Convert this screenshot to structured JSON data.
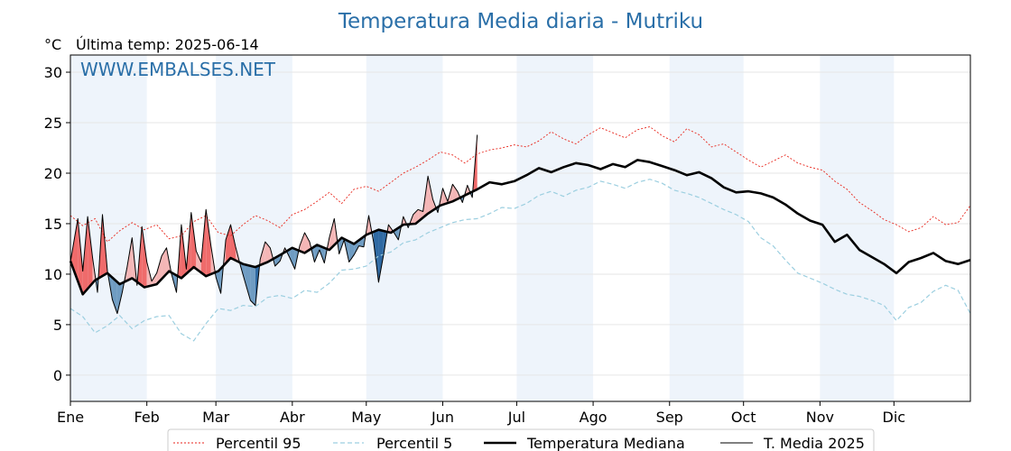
{
  "title": "Temperatura Media diaria - Mutriku",
  "unit_label": "°C",
  "last_temp_label": "Última temp: 2025-06-14",
  "watermark": "WWW.EMBALSES.NET",
  "colors": {
    "title": "#2a6fa8",
    "p95": "#e8261c",
    "p5": "#9ccfe0",
    "median": "#000000",
    "current": "#000000",
    "above_fill": "#f4b6b6",
    "above_fill_strong": "#ef6b6b",
    "below_fill": "#6f9cc2",
    "below_fill_strong": "#2f6aa3",
    "month_band": "#eef4fb"
  },
  "chart_data": {
    "type": "line",
    "title": "Temperatura Media diaria - Mutriku",
    "ylabel": "°C",
    "ylim": [
      -2.6,
      31.7
    ],
    "yticks": [
      0,
      5,
      10,
      15,
      20,
      25,
      30
    ],
    "xlim_day": [
      0,
      365
    ],
    "months": [
      {
        "label": "Ene",
        "day": 0
      },
      {
        "label": "Feb",
        "day": 31
      },
      {
        "label": "Mar",
        "day": 59
      },
      {
        "label": "Abr",
        "day": 90
      },
      {
        "label": "May",
        "day": 120
      },
      {
        "label": "Jun",
        "day": 151
      },
      {
        "label": "Jul",
        "day": 181
      },
      {
        "label": "Ago",
        "day": 212
      },
      {
        "label": "Sep",
        "day": 243
      },
      {
        "label": "Oct",
        "day": 273
      },
      {
        "label": "Nov",
        "day": 304
      },
      {
        "label": "Dic",
        "day": 334
      }
    ],
    "shaded_months": [
      "Ene",
      "Mar",
      "May",
      "Jul",
      "Sep",
      "Nov"
    ],
    "grid": true,
    "legend_position": "bottom-center",
    "series": [
      {
        "name": "Percentil 95",
        "style": "dotted",
        "x": [
          0,
          5,
          10,
          15,
          20,
          25,
          30,
          35,
          40,
          45,
          50,
          55,
          60,
          65,
          70,
          75,
          80,
          85,
          90,
          95,
          100,
          105,
          110,
          115,
          120,
          125,
          130,
          135,
          140,
          145,
          150,
          155,
          160,
          165,
          170,
          175,
          180,
          185,
          190,
          195,
          200,
          205,
          210,
          215,
          220,
          225,
          230,
          235,
          240,
          245,
          250,
          255,
          260,
          265,
          270,
          275,
          280,
          285,
          290,
          295,
          300,
          305,
          310,
          315,
          320,
          325,
          330,
          335,
          340,
          345,
          350,
          355,
          360,
          365
        ],
        "values": [
          15.8,
          14.8,
          15.5,
          13.2,
          14.3,
          15.1,
          14.4,
          14.9,
          13.5,
          13.8,
          15.2,
          15.8,
          14.1,
          13.8,
          14.9,
          15.8,
          15.3,
          14.6,
          15.9,
          16.4,
          17.2,
          18.1,
          17.0,
          18.4,
          18.7,
          18.2,
          19.1,
          20.0,
          20.6,
          21.3,
          22.1,
          21.8,
          21.0,
          21.9,
          22.3,
          22.5,
          22.8,
          22.6,
          23.2,
          24.1,
          23.4,
          22.9,
          23.8,
          24.5,
          24.0,
          23.5,
          24.3,
          24.6,
          23.7,
          23.1,
          24.4,
          23.8,
          22.6,
          22.9,
          22.1,
          21.3,
          20.6,
          21.2,
          21.8,
          21.0,
          20.6,
          20.3,
          19.2,
          18.4,
          17.1,
          16.3,
          15.4,
          14.9,
          14.2,
          14.6,
          15.7,
          14.9,
          15.1,
          16.8
        ]
      },
      {
        "name": "Percentil 5",
        "style": "dashed",
        "x": [
          0,
          5,
          10,
          15,
          20,
          25,
          30,
          35,
          40,
          45,
          50,
          55,
          60,
          65,
          70,
          75,
          80,
          85,
          90,
          95,
          100,
          105,
          110,
          115,
          120,
          125,
          130,
          135,
          140,
          145,
          150,
          155,
          160,
          165,
          170,
          175,
          180,
          185,
          190,
          195,
          200,
          205,
          210,
          215,
          220,
          225,
          230,
          235,
          240,
          245,
          250,
          255,
          260,
          265,
          270,
          275,
          280,
          285,
          290,
          295,
          300,
          305,
          310,
          315,
          320,
          325,
          330,
          335,
          340,
          345,
          350,
          355,
          360,
          365
        ],
        "values": [
          6.6,
          5.8,
          4.2,
          4.9,
          5.9,
          4.6,
          5.4,
          5.8,
          5.9,
          4.1,
          3.4,
          5.1,
          6.6,
          6.4,
          6.9,
          6.8,
          7.7,
          7.9,
          7.6,
          8.4,
          8.2,
          9.1,
          10.4,
          10.5,
          10.8,
          11.8,
          12.2,
          13.1,
          13.4,
          14.1,
          14.6,
          15.1,
          15.4,
          15.5,
          16.0,
          16.6,
          16.5,
          17.0,
          17.8,
          18.2,
          17.7,
          18.3,
          18.6,
          19.2,
          18.9,
          18.5,
          19.1,
          19.4,
          19.0,
          18.3,
          18.0,
          17.6,
          17.0,
          16.4,
          15.9,
          15.2,
          13.6,
          12.8,
          11.4,
          10.1,
          9.6,
          9.1,
          8.5,
          8.0,
          7.8,
          7.4,
          6.9,
          5.4,
          6.7,
          7.2,
          8.3,
          8.9,
          8.4,
          6.1
        ]
      },
      {
        "name": "Temperatura Mediana",
        "style": "solid-thick",
        "x": [
          0,
          5,
          10,
          15,
          20,
          25,
          30,
          35,
          40,
          45,
          50,
          55,
          60,
          65,
          70,
          75,
          80,
          85,
          90,
          95,
          100,
          105,
          110,
          115,
          120,
          125,
          130,
          135,
          140,
          145,
          150,
          155,
          160,
          165,
          170,
          175,
          180,
          185,
          190,
          195,
          200,
          205,
          210,
          215,
          220,
          225,
          230,
          235,
          240,
          245,
          250,
          255,
          260,
          265,
          270,
          275,
          280,
          285,
          290,
          295,
          300,
          305,
          310,
          315,
          320,
          325,
          330,
          335,
          340,
          345,
          350,
          355,
          360,
          365
        ],
        "values": [
          11.3,
          8.0,
          9.4,
          10.1,
          9.0,
          9.6,
          8.7,
          9.0,
          10.3,
          9.6,
          10.7,
          9.8,
          10.3,
          11.6,
          11.0,
          10.7,
          11.2,
          11.9,
          12.6,
          12.1,
          12.9,
          12.4,
          13.6,
          13.0,
          13.9,
          14.4,
          14.1,
          14.9,
          15.0,
          16.0,
          16.8,
          17.2,
          17.8,
          18.4,
          19.1,
          18.9,
          19.2,
          19.8,
          20.5,
          20.1,
          20.6,
          21.0,
          20.8,
          20.4,
          20.9,
          20.6,
          21.3,
          21.1,
          20.7,
          20.3,
          19.8,
          20.1,
          19.5,
          18.6,
          18.1,
          18.2,
          18.0,
          17.6,
          16.9,
          16.0,
          15.3,
          14.9,
          13.2,
          13.9,
          12.4,
          11.7,
          11.0,
          10.1,
          11.2,
          11.6,
          12.1,
          11.3,
          11.0,
          11.4
        ]
      },
      {
        "name": "T. Media 2025",
        "style": "solid-thin",
        "x": [
          0,
          3,
          5,
          7,
          9,
          11,
          13,
          15,
          17,
          19,
          21,
          23,
          25,
          27,
          29,
          31,
          33,
          35,
          37,
          39,
          41,
          43,
          45,
          47,
          49,
          51,
          53,
          55,
          57,
          59,
          61,
          63,
          65,
          67,
          69,
          71,
          73,
          75,
          77,
          79,
          81,
          83,
          85,
          87,
          89,
          91,
          93,
          95,
          97,
          99,
          101,
          103,
          105,
          107,
          109,
          111,
          113,
          115,
          117,
          119,
          121,
          123,
          125,
          127,
          129,
          131,
          133,
          135,
          137,
          139,
          141,
          143,
          145,
          147,
          149,
          151,
          153,
          155,
          157,
          159,
          161,
          163,
          165
        ],
        "values": [
          11.2,
          15.5,
          10.3,
          15.7,
          11.6,
          8.2,
          15.9,
          10.3,
          7.5,
          6.1,
          8.2,
          10.7,
          13.6,
          8.9,
          14.7,
          11.2,
          9.3,
          10.1,
          11.8,
          12.6,
          10.0,
          8.2,
          14.9,
          10.5,
          16.1,
          12.3,
          11.2,
          16.4,
          12.8,
          9.7,
          8.1,
          13.4,
          14.9,
          12.7,
          10.8,
          9.1,
          7.4,
          6.9,
          11.5,
          13.2,
          12.6,
          10.8,
          11.3,
          12.6,
          11.6,
          10.5,
          12.8,
          14.1,
          13.2,
          11.2,
          12.4,
          11.1,
          13.6,
          15.5,
          12.0,
          13.4,
          11.2,
          11.9,
          12.8,
          12.7,
          15.8,
          13.1,
          9.2,
          11.9,
          14.9,
          14.2,
          13.4,
          15.7,
          14.6,
          15.9,
          16.4,
          16.2,
          19.7,
          17.4,
          16.1,
          18.5,
          17.2,
          18.9,
          18.2,
          17.1,
          18.8,
          17.6,
          23.8
        ]
      }
    ]
  },
  "legend": {
    "items": [
      {
        "label": "Percentil 95"
      },
      {
        "label": "Percentil 5"
      },
      {
        "label": "Temperatura Mediana"
      },
      {
        "label": "T. Media 2025"
      }
    ]
  }
}
